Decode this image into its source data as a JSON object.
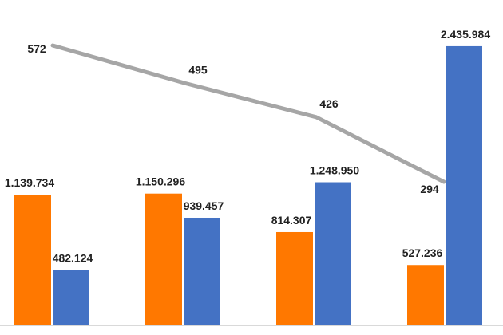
{
  "colors": {
    "series_a": "#FF7800",
    "series_b": "#4472C4",
    "line": "#A6A6A6",
    "baseline": "#D9D9D9"
  },
  "chart_data": {
    "type": "bar",
    "title": "",
    "xlabel": "",
    "ylabel": "",
    "categories": [
      "",
      "",
      "",
      ""
    ],
    "ylim": [
      0,
      2700000
    ],
    "series": [
      {
        "name": "",
        "kind": "bar",
        "values": [
          1139734,
          1150296,
          814307,
          527236
        ],
        "labels": [
          "1.139.734",
          "1.150.296",
          "814.307",
          "527.236"
        ]
      },
      {
        "name": "",
        "kind": "bar",
        "values": [
          482124,
          939457,
          1248950,
          2435984
        ],
        "labels": [
          "482.124",
          "939.457",
          "1.248.950",
          "2.435.984"
        ]
      },
      {
        "name": "",
        "kind": "line",
        "values": [
          572,
          495,
          426,
          294
        ],
        "labels": [
          "572",
          "495",
          "426",
          "294"
        ]
      }
    ]
  }
}
